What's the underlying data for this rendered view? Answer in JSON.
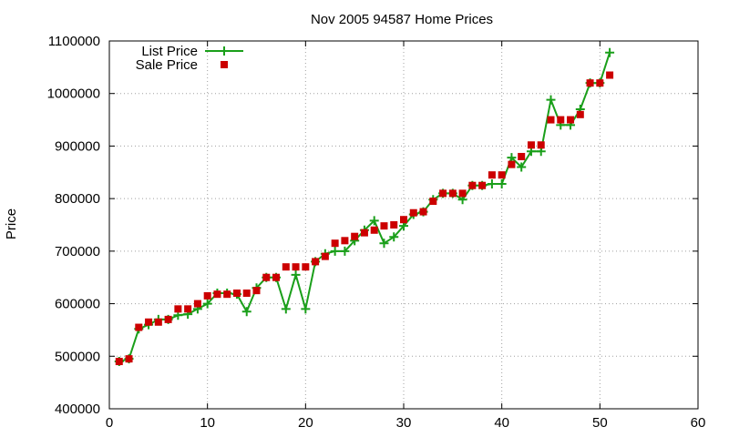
{
  "chart_data": {
    "type": "line",
    "title": "Nov 2005 94587 Home Prices",
    "xlabel": "",
    "ylabel": "Price",
    "xlim": [
      0,
      60
    ],
    "ylim": [
      400000,
      1100000
    ],
    "x_ticks": [
      "0",
      "10",
      "20",
      "30",
      "40",
      "50",
      "60"
    ],
    "y_ticks": [
      "400000",
      "500000",
      "600000",
      "700000",
      "800000",
      "900000",
      "1000000",
      "1100000"
    ],
    "grid": true,
    "legend_position": "top-left",
    "series": [
      {
        "name": "List Price",
        "style": "line-with-plus-markers",
        "color": "#1a9f1a",
        "points": [
          [
            1,
            490000
          ],
          [
            2,
            495000
          ],
          [
            3,
            552000
          ],
          [
            4,
            560000
          ],
          [
            5,
            570000
          ],
          [
            6,
            570000
          ],
          [
            7,
            578000
          ],
          [
            8,
            580000
          ],
          [
            9,
            590000
          ],
          [
            10,
            600000
          ],
          [
            11,
            620000
          ],
          [
            12,
            620000
          ],
          [
            13,
            618000
          ],
          [
            14,
            585000
          ],
          [
            15,
            630000
          ],
          [
            16,
            650000
          ],
          [
            17,
            650000
          ],
          [
            18,
            590000
          ],
          [
            19,
            655000
          ],
          [
            20,
            590000
          ],
          [
            21,
            680000
          ],
          [
            22,
            695000
          ],
          [
            23,
            700000
          ],
          [
            24,
            700000
          ],
          [
            25,
            720000
          ],
          [
            26,
            740000
          ],
          [
            27,
            758000
          ],
          [
            28,
            715000
          ],
          [
            29,
            727000
          ],
          [
            30,
            748000
          ],
          [
            31,
            770000
          ],
          [
            32,
            775000
          ],
          [
            33,
            798000
          ],
          [
            34,
            810000
          ],
          [
            35,
            810000
          ],
          [
            36,
            798000
          ],
          [
            37,
            825000
          ],
          [
            38,
            825000
          ],
          [
            39,
            828000
          ],
          [
            40,
            828000
          ],
          [
            41,
            878000
          ],
          [
            42,
            860000
          ],
          [
            43,
            890000
          ],
          [
            44,
            890000
          ],
          [
            45,
            988000
          ],
          [
            46,
            940000
          ],
          [
            47,
            940000
          ],
          [
            48,
            970000
          ],
          [
            49,
            1020000
          ],
          [
            50,
            1020000
          ],
          [
            51,
            1078000
          ]
        ]
      },
      {
        "name": "Sale Price",
        "style": "square-markers",
        "color": "#cc0000",
        "points": [
          [
            1,
            490000
          ],
          [
            2,
            495000
          ],
          [
            3,
            555000
          ],
          [
            4,
            565000
          ],
          [
            5,
            565000
          ],
          [
            6,
            570000
          ],
          [
            7,
            590000
          ],
          [
            8,
            590000
          ],
          [
            9,
            600000
          ],
          [
            10,
            615000
          ],
          [
            11,
            618000
          ],
          [
            12,
            618000
          ],
          [
            13,
            620000
          ],
          [
            14,
            620000
          ],
          [
            15,
            625000
          ],
          [
            16,
            650000
          ],
          [
            17,
            650000
          ],
          [
            18,
            670000
          ],
          [
            19,
            670000
          ],
          [
            20,
            670000
          ],
          [
            21,
            680000
          ],
          [
            22,
            690000
          ],
          [
            23,
            715000
          ],
          [
            24,
            720000
          ],
          [
            25,
            728000
          ],
          [
            26,
            735000
          ],
          [
            27,
            740000
          ],
          [
            28,
            748000
          ],
          [
            29,
            750000
          ],
          [
            30,
            760000
          ],
          [
            31,
            773000
          ],
          [
            32,
            775000
          ],
          [
            33,
            795000
          ],
          [
            34,
            810000
          ],
          [
            35,
            810000
          ],
          [
            36,
            810000
          ],
          [
            37,
            825000
          ],
          [
            38,
            825000
          ],
          [
            39,
            845000
          ],
          [
            40,
            845000
          ],
          [
            41,
            865000
          ],
          [
            42,
            880000
          ],
          [
            43,
            902000
          ],
          [
            44,
            902000
          ],
          [
            45,
            950000
          ],
          [
            46,
            950000
          ],
          [
            47,
            950000
          ],
          [
            48,
            960000
          ],
          [
            49,
            1020000
          ],
          [
            50,
            1020000
          ],
          [
            51,
            1035000
          ]
        ]
      }
    ]
  }
}
